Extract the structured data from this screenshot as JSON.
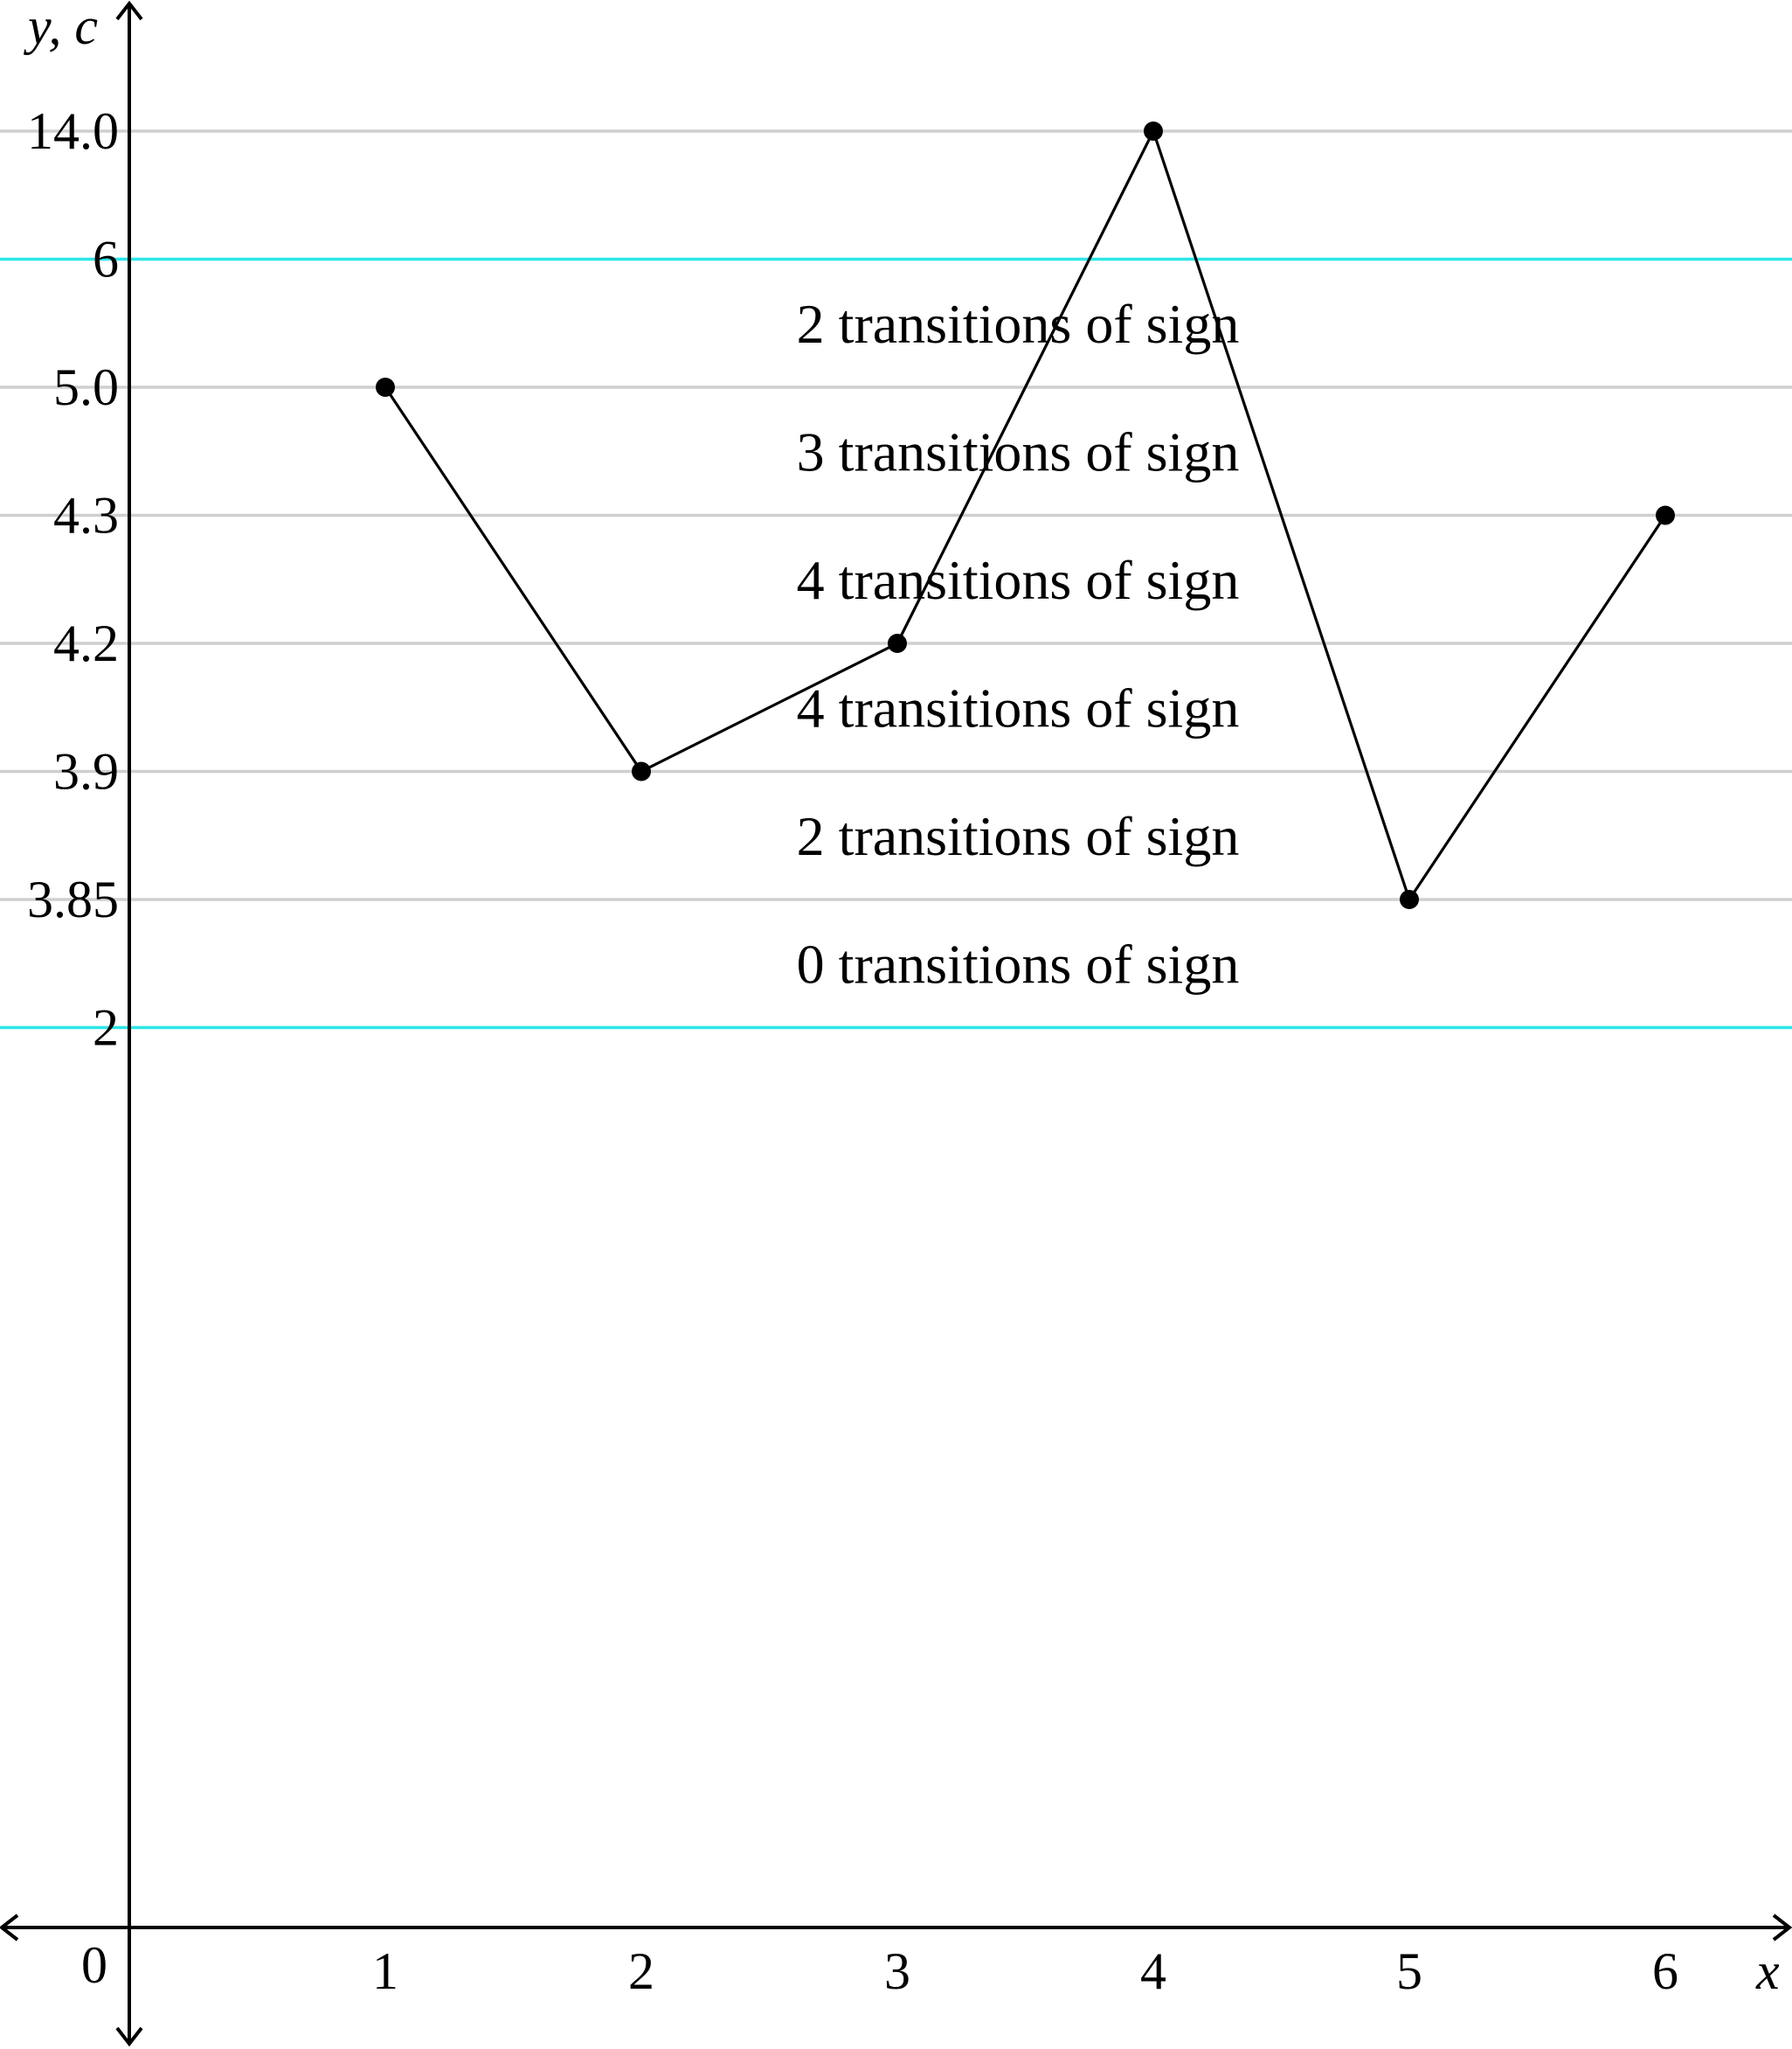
{
  "chart_data": {
    "type": "line",
    "title": "",
    "xlabel": "x",
    "ylabel": "y, c",
    "origin_label": "0",
    "x_ticks": [
      "1",
      "2",
      "3",
      "4",
      "5",
      "6"
    ],
    "y_levels": [
      {
        "label": "14.0",
        "value": 14.0,
        "kind": "gridline"
      },
      {
        "label": "6",
        "value": 6,
        "kind": "threshold"
      },
      {
        "label": "5.0",
        "value": 5.0,
        "kind": "gridline"
      },
      {
        "label": "4.3",
        "value": 4.3,
        "kind": "gridline"
      },
      {
        "label": "4.2",
        "value": 4.2,
        "kind": "gridline"
      },
      {
        "label": "3.9",
        "value": 3.9,
        "kind": "gridline"
      },
      {
        "label": "3.85",
        "value": 3.85,
        "kind": "gridline"
      },
      {
        "label": "2",
        "value": 2,
        "kind": "threshold"
      }
    ],
    "series": [
      {
        "x": [
          1,
          2,
          3,
          4,
          5,
          6
        ],
        "y": [
          5.0,
          3.9,
          4.2,
          14.0,
          3.85,
          4.3
        ]
      }
    ],
    "annotations": [
      {
        "text": "2 transitions of sign",
        "between": [
          6,
          5.0
        ]
      },
      {
        "text": "3 transitions of sign",
        "between": [
          5.0,
          4.3
        ]
      },
      {
        "text": "4 transitions of sign",
        "between": [
          4.3,
          4.2
        ]
      },
      {
        "text": "4 transitions of sign",
        "between": [
          4.2,
          3.9
        ]
      },
      {
        "text": "2 transitions of sign",
        "between": [
          3.9,
          3.85
        ]
      },
      {
        "text": "0 transitions of sign",
        "between": [
          3.85,
          2
        ]
      }
    ],
    "colors": {
      "gridline": "#cfcfcf",
      "threshold": "#2ee6e8",
      "series": "#000000"
    },
    "grid": true,
    "legend": "none",
    "note": "y-axis is non-uniform: each listed level sits on its own evenly spaced rank"
  }
}
